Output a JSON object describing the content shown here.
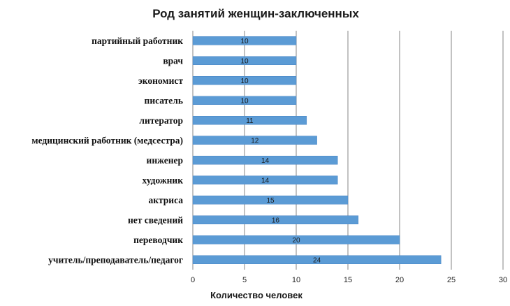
{
  "chart_data": {
    "type": "bar",
    "orientation": "horizontal",
    "title": "Род занятий женщин-заключенных",
    "xlabel": "Количество человек",
    "ylabel": "",
    "xlim": [
      0,
      30
    ],
    "x_ticks": [
      0,
      5,
      10,
      15,
      20,
      25,
      30
    ],
    "grid": true,
    "legend": "none",
    "categories": [
      "партийный работник",
      "врач",
      "экономист",
      "писатель",
      "литератор",
      "медицинский работник (медсестра)",
      "инженер",
      "художник",
      "актриса",
      "нет сведений",
      "переводчик",
      "учитель/преподаватель/педагог"
    ],
    "values": [
      10,
      10,
      10,
      10,
      11,
      12,
      14,
      14,
      15,
      16,
      20,
      24
    ],
    "colors": {
      "bar": "#5b9bd5",
      "bar_edge": "#4a86c5",
      "grid": "#868686",
      "axis": "#868686"
    }
  }
}
